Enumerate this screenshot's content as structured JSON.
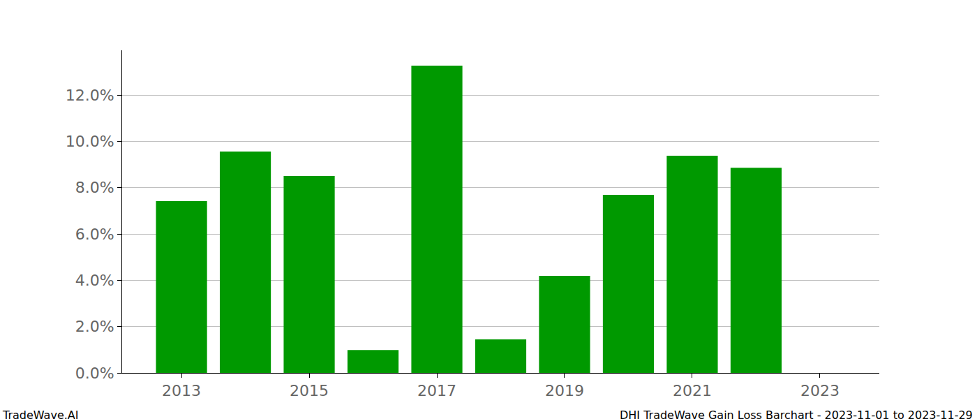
{
  "chart_data": {
    "type": "bar",
    "x": [
      2013,
      2014,
      2015,
      2016,
      2017,
      2018,
      2019,
      2020,
      2021,
      2022
    ],
    "values": [
      7.42,
      9.56,
      8.5,
      0.99,
      13.27,
      1.45,
      4.19,
      7.69,
      9.38,
      8.86
    ],
    "color": "#009900",
    "xlim": [
      2012.07,
      2023.93
    ],
    "xticks": [
      2013,
      2015,
      2017,
      2019,
      2021,
      2023
    ],
    "ylim": [
      0,
      13.93
    ],
    "yticks": [
      {
        "value": 0,
        "label": "0.0%"
      },
      {
        "value": 2,
        "label": "2.0%"
      },
      {
        "value": 4,
        "label": "4.0%"
      },
      {
        "value": 6,
        "label": "6.0%"
      },
      {
        "value": 8,
        "label": "8.0%"
      },
      {
        "value": 10,
        "label": "10.0%"
      },
      {
        "value": 12,
        "label": "12.0%"
      }
    ],
    "grid": true,
    "annotations": [
      {
        "text": "TradeWave.AI"
      },
      {
        "text": "DHI TradeWave Gain Loss Barchart - 2023-11-01 to 2023-11-29"
      }
    ]
  }
}
